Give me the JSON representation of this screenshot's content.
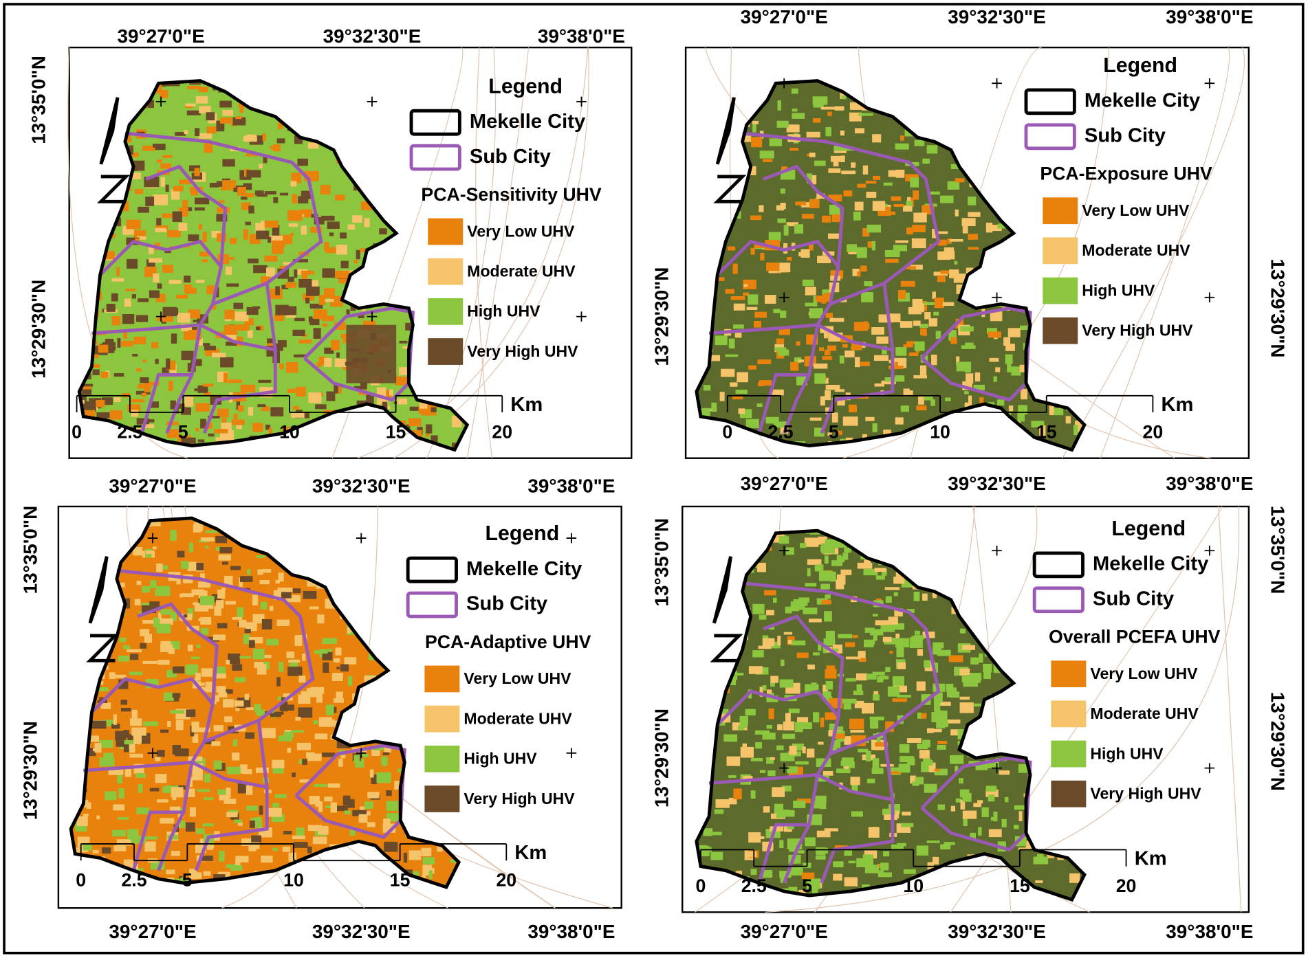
{
  "panels": [
    {
      "top_labels": [
        "39°27'0\"E",
        "39°32'30\"E",
        "39°38'0\"E"
      ],
      "left_labels": [
        "13°35'0\"N",
        "13°29'30\"N"
      ],
      "legend": {
        "title": "Legend",
        "boundaries": [
          {
            "label": "Mekelle City",
            "color": "#000000"
          },
          {
            "label": "Sub City",
            "color": "#9b59b6"
          }
        ],
        "layer_title": "PCA-Sensitivity UHV",
        "classes": [
          {
            "label": "Very Low UHV",
            "color": "#e8820c"
          },
          {
            "label": "Moderate UHV",
            "color": "#f5c46a"
          },
          {
            "label": "High UHV",
            "color": "#8cc63f"
          },
          {
            "label": "Very High UHV",
            "color": "#6b4a2a"
          }
        ]
      },
      "scale_ticks": [
        0,
        2.5,
        5,
        10,
        15,
        20
      ],
      "scale_unit": "Km"
    },
    {
      "top_labels": [
        "39°27'0\"E",
        "39°32'30\"E",
        "39°38'0\"E"
      ],
      "left_labels": [
        "13°29'30\"N"
      ],
      "right_labels": [
        "13°29'30\"N"
      ],
      "legend": {
        "title": "Legend",
        "boundaries": [
          {
            "label": "Mekelle City",
            "color": "#000000"
          },
          {
            "label": "Sub City",
            "color": "#9b59b6"
          }
        ],
        "layer_title": "PCA-Exposure UHV",
        "classes": [
          {
            "label": "Very Low UHV",
            "color": "#e8820c"
          },
          {
            "label": "Moderate UHV",
            "color": "#f5c46a"
          },
          {
            "label": "High UHV",
            "color": "#8cc63f"
          },
          {
            "label": "Very High UHV",
            "color": "#6b4a2a"
          }
        ]
      },
      "scale_ticks": [
        0,
        2.5,
        5,
        10,
        15,
        20
      ],
      "scale_unit": "Km"
    },
    {
      "top_labels": [
        "39°27'0\"E",
        "39°32'30\"E",
        "39°38'0\"E"
      ],
      "bottom_labels": [
        "39°27'0\"E",
        "39°32'30\"E",
        "39°38'0\"E"
      ],
      "left_labels": [
        "13°35'0\"N",
        "13°29'30\"N"
      ],
      "legend": {
        "title": "Legend",
        "boundaries": [
          {
            "label": "Mekelle City",
            "color": "#000000"
          },
          {
            "label": "Sub City",
            "color": "#9b59b6"
          }
        ],
        "layer_title": "PCA-Adaptive UHV",
        "classes": [
          {
            "label": "Very Low UHV",
            "color": "#e8820c"
          },
          {
            "label": "Moderate UHV",
            "color": "#f5c46a"
          },
          {
            "label": "High UHV",
            "color": "#8cc63f"
          },
          {
            "label": "Very High UHV",
            "color": "#6b4a2a"
          }
        ]
      },
      "scale_ticks": [
        0,
        2.5,
        5,
        10,
        15,
        20
      ],
      "scale_unit": "Km"
    },
    {
      "top_labels": [
        "39°27'0\"E",
        "39°32'30\"E",
        "39°38'0\"E"
      ],
      "bottom_labels": [
        "39°27'0\"E",
        "39°32'30\"E",
        "39°38'0\"E"
      ],
      "left_labels": [
        "13°35'0\"N",
        "13°29'30\"N"
      ],
      "right_labels": [
        "13°35'0\"N",
        "13°29'30\"N"
      ],
      "legend": {
        "title": "Legend",
        "boundaries": [
          {
            "label": "Mekelle City",
            "color": "#000000"
          },
          {
            "label": "Sub City",
            "color": "#9b59b6"
          }
        ],
        "layer_title": "Overall PCEFA UHV",
        "classes": [
          {
            "label": "Very Low UHV",
            "color": "#e8820c"
          },
          {
            "label": "Moderate UHV",
            "color": "#f5c46a"
          },
          {
            "label": "High UHV",
            "color": "#8cc63f"
          },
          {
            "label": "Very High UHV",
            "color": "#6b4a2a"
          }
        ]
      },
      "scale_ticks": [
        0,
        2.5,
        5,
        10,
        15,
        20
      ],
      "scale_unit": "Km"
    }
  ]
}
